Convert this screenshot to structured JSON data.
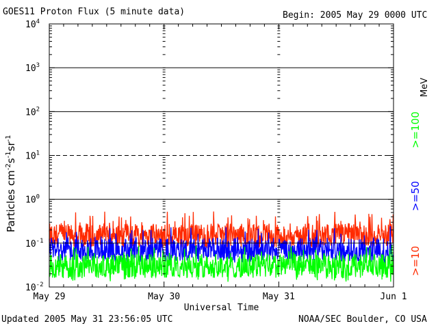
{
  "header": {
    "title": "GOES11 Proton Flux (5 minute data)",
    "begin": "Begin: 2005 May 29 0000 UTC"
  },
  "footer": {
    "updated": "Updated 2005 May 31 23:56:05 UTC",
    "credit": "NOAA/SEC Boulder, CO USA"
  },
  "chart_data": {
    "type": "line",
    "title": "GOES11 Proton Flux (5 minute data)",
    "xlabel": "Universal Time",
    "ylabel": "Particles cm-2s-1sr-1",
    "yscale": "log",
    "ylim": [
      0.01,
      10000
    ],
    "xlim": [
      "2005-05-29",
      "2005-06-01"
    ],
    "x_ticks": [
      "May 29",
      "May 30",
      "May 31",
      "Jun 1"
    ],
    "y_ticks": [
      "10-2",
      "10-1",
      "100",
      "101",
      "102",
      "103",
      "104"
    ],
    "unit_label": "MeV",
    "grid": {
      "solid_levels": [
        1000,
        100,
        1
      ],
      "dashed_levels": [
        10
      ],
      "thin_levels": [
        0.1
      ]
    },
    "series": [
      {
        "name": ">=10",
        "color": "#ff2a00",
        "mean": 0.15,
        "min": 0.08,
        "max": 0.55
      },
      {
        "name": ">=50",
        "color": "#0000ff",
        "mean": 0.07,
        "min": 0.035,
        "max": 0.25
      },
      {
        "name": ">=100",
        "color": "#00ff00",
        "mean": 0.03,
        "min": 0.013,
        "max": 0.09
      }
    ]
  }
}
